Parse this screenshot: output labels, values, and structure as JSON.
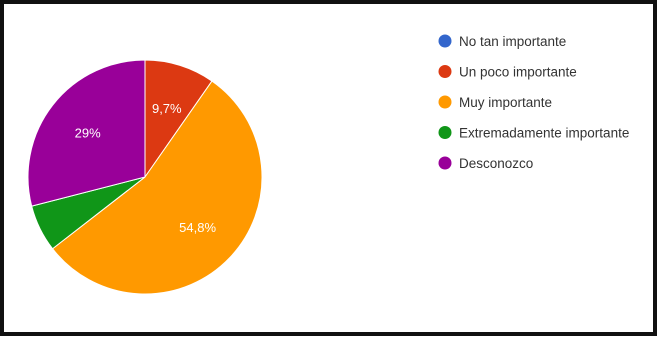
{
  "chart_data": {
    "type": "pie",
    "slices": [
      {
        "label": "No tan importante",
        "value": 0,
        "display": "",
        "color": "#3366cc"
      },
      {
        "label": "Un poco importante",
        "value": 9.7,
        "display": "9,7%",
        "color": "#dc3912"
      },
      {
        "label": "Muy importante",
        "value": 54.8,
        "display": "54,8%",
        "color": "#ff9900"
      },
      {
        "label": "Extremadamente importante",
        "value": 6.5,
        "display": "",
        "color": "#109618"
      },
      {
        "label": "Desconozco",
        "value": 29,
        "display": "29%",
        "color": "#990099"
      }
    ],
    "start_angle_deg": 90,
    "direction": "clockwise",
    "legend_position": "right"
  }
}
